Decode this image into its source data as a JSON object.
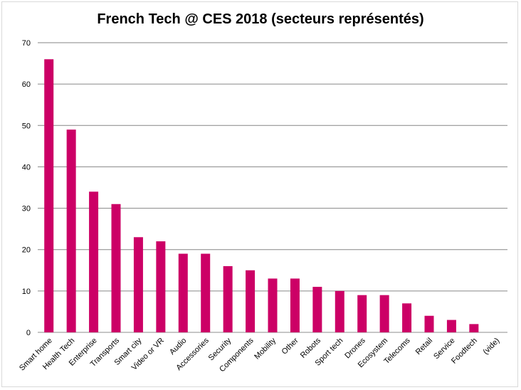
{
  "chart_data": {
    "type": "bar",
    "title": "French Tech @ CES 2018 (secteurs représentés)",
    "categories": [
      "Smart home",
      "Health Tech",
      "Enterprise",
      "Transports",
      "Smart city",
      "Video or VR",
      "Audio",
      "Accessories",
      "Security",
      "Components",
      "Mobility",
      "Other",
      "Robots",
      "Sport tech",
      "Drones",
      "Ecosystem",
      "Telecoms",
      "Retail",
      "Service",
      "Foodtech",
      "(vide)"
    ],
    "values": [
      66,
      49,
      34,
      31,
      23,
      22,
      19,
      19,
      16,
      15,
      13,
      13,
      11,
      10,
      9,
      9,
      7,
      4,
      3,
      2,
      0
    ],
    "ylim": [
      0,
      70
    ],
    "yticks": [
      0,
      10,
      20,
      30,
      40,
      50,
      60,
      70
    ],
    "grid": true,
    "legend": "none",
    "bar_color": "#cc0066"
  }
}
